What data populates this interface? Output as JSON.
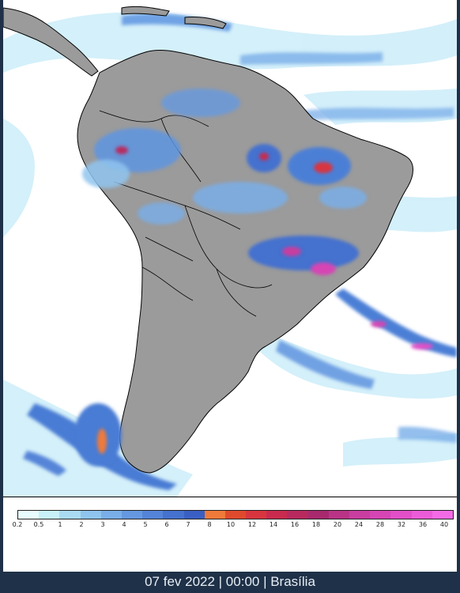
{
  "map": {
    "region": "South America",
    "land_color": "#9b9b9b",
    "ocean_color": "#ffffff",
    "border_color": "#000000"
  },
  "legend": {
    "labels": [
      "0.2",
      "0.5",
      "1",
      "2",
      "3",
      "4",
      "5",
      "6",
      "7",
      "8",
      "10",
      "12",
      "14",
      "16",
      "18",
      "20",
      "24",
      "28",
      "32",
      "36",
      "40"
    ],
    "colors": [
      "#e8fbfd",
      "#c8f1f8",
      "#a9dbf2",
      "#8fc4ee",
      "#79aee8",
      "#6598e0",
      "#5484d8",
      "#4571cf",
      "#3a5fc4",
      "#ef7a3a",
      "#e04a2c",
      "#d8353f",
      "#c92a4e",
      "#b8295e",
      "#a8296e",
      "#b93387",
      "#c83d9f",
      "#d645b4",
      "#e24fc8",
      "#ec5cd9",
      "#f46ae6"
    ]
  },
  "footer": {
    "datetime": "07 fev 2022 | 00:00 | Brasília"
  }
}
